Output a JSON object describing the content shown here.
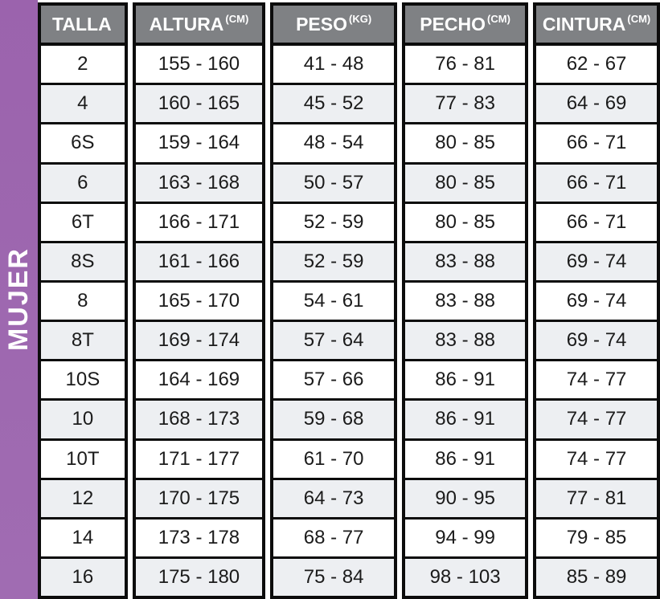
{
  "band": {
    "label": "MUJER"
  },
  "colors": {
    "band_purple_top": "#9b63ad",
    "band_purple_bottom": "#a06cb2",
    "header_gray": "#7f8184",
    "row_alt": "#edeff2",
    "border_black": "#0c0c0c",
    "header_text": "#ffffff",
    "cell_text": "#1b1b1b"
  },
  "chart_data": {
    "type": "table",
    "title": "MUJER",
    "legend_position": "left-vertical-band",
    "columns": [
      {
        "key": "talla",
        "header": "TALLA",
        "unit": ""
      },
      {
        "key": "altura",
        "header": "ALTURA",
        "unit": "(CM)"
      },
      {
        "key": "peso",
        "header": "PESO",
        "unit": "(KG)"
      },
      {
        "key": "pecho",
        "header": "PECHO",
        "unit": "(CM)"
      },
      {
        "key": "cintura",
        "header": "CINTURA",
        "unit": "(CM)"
      }
    ],
    "rows": [
      [
        "2",
        "155 - 160",
        "41 - 48",
        "76 - 81",
        "62 - 67"
      ],
      [
        "4",
        "160 - 165",
        "45 - 52",
        "77 - 83",
        "64 - 69"
      ],
      [
        "6S",
        "159 - 164",
        "48 - 54",
        "80 - 85",
        "66 - 71"
      ],
      [
        "6",
        "163 - 168",
        "50 - 57",
        "80 - 85",
        "66 - 71"
      ],
      [
        "6T",
        "166 - 171",
        "52 - 59",
        "80 - 85",
        "66 - 71"
      ],
      [
        "8S",
        "161 - 166",
        "52 - 59",
        "83 - 88",
        "69 - 74"
      ],
      [
        "8",
        "165 - 170",
        "54 - 61",
        "83 - 88",
        "69 - 74"
      ],
      [
        "8T",
        "169 - 174",
        "57 - 64",
        "83 - 88",
        "69 - 74"
      ],
      [
        "10S",
        "164 - 169",
        "57 - 66",
        "86 - 91",
        "74 - 77"
      ],
      [
        "10",
        "168 - 173",
        "59 - 68",
        "86 - 91",
        "74 - 77"
      ],
      [
        "10T",
        "171 - 177",
        "61 - 70",
        "86 - 91",
        "74 - 77"
      ],
      [
        "12",
        "170 - 175",
        "64 - 73",
        "90 - 95",
        "77 - 81"
      ],
      [
        "14",
        "173 - 178",
        "68 - 77",
        "94 - 99",
        "79 - 85"
      ],
      [
        "16",
        "175 - 180",
        "75 - 84",
        "98 - 103",
        "85 - 89"
      ]
    ]
  }
}
